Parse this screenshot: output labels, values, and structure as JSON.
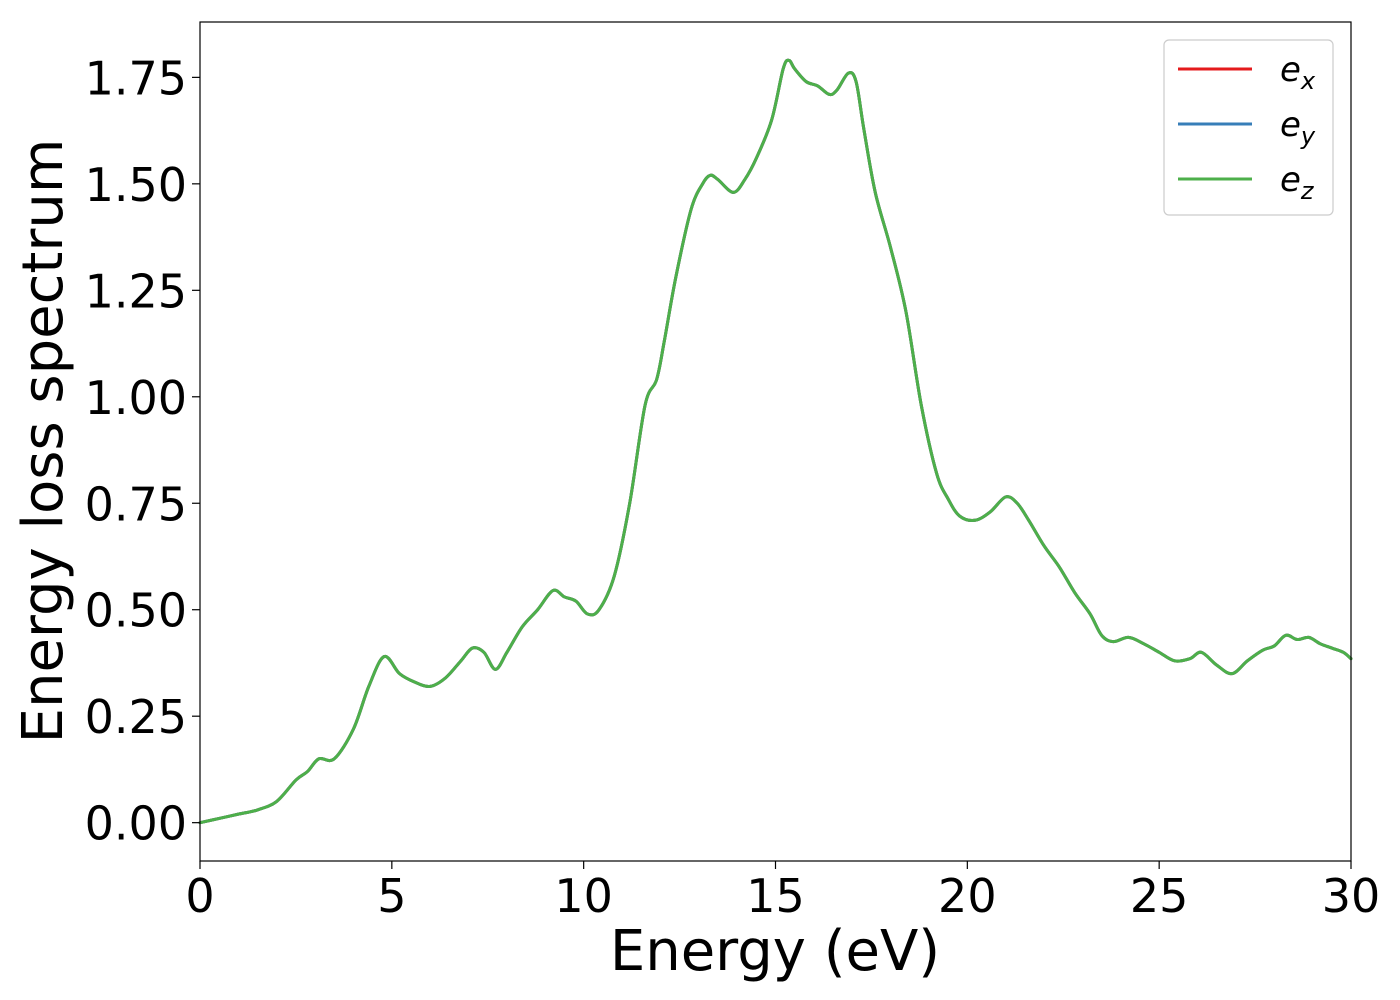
{
  "chart_data": {
    "type": "line",
    "xlabel": "Energy (eV)",
    "ylabel": "Energy loss spectrum",
    "xlim": [
      0,
      30
    ],
    "ylim": [
      -0.09,
      1.88
    ],
    "xticks": [
      0,
      5,
      10,
      15,
      20,
      25,
      30
    ],
    "xtick_labels": [
      "0",
      "5",
      "10",
      "15",
      "20",
      "25",
      "30"
    ],
    "yticks": [
      0.0,
      0.25,
      0.5,
      0.75,
      1.0,
      1.25,
      1.5,
      1.75
    ],
    "ytick_labels": [
      "0.00",
      "0.25",
      "0.50",
      "0.75",
      "1.00",
      "1.25",
      "1.50",
      "1.75"
    ],
    "grid": false,
    "legend_position": "top-right",
    "x": [
      0,
      0.5,
      1.0,
      1.5,
      2.0,
      2.5,
      2.8,
      3.1,
      3.5,
      4.0,
      4.4,
      4.8,
      5.2,
      5.6,
      6.0,
      6.4,
      6.8,
      7.1,
      7.4,
      7.7,
      8.0,
      8.4,
      8.8,
      9.2,
      9.5,
      9.8,
      10.1,
      10.4,
      10.8,
      11.2,
      11.6,
      11.9,
      12.1,
      12.4,
      12.8,
      13.1,
      13.3,
      13.5,
      13.9,
      14.2,
      14.5,
      14.9,
      15.2,
      15.35,
      15.5,
      15.8,
      16.1,
      16.4,
      16.6,
      16.9,
      17.1,
      17.3,
      17.6,
      18.0,
      18.4,
      18.8,
      19.2,
      19.5,
      19.8,
      20.2,
      20.6,
      21.0,
      21.3,
      21.6,
      22.0,
      22.4,
      22.8,
      23.2,
      23.5,
      23.8,
      24.2,
      24.6,
      25.0,
      25.4,
      25.8,
      26.1,
      26.5,
      26.9,
      27.3,
      27.7,
      28.0,
      28.3,
      28.6,
      28.9,
      29.2,
      29.5,
      29.8,
      30.0
    ],
    "series": [
      {
        "name": "e_x",
        "color": "#e41a1c",
        "values": [
          0.0,
          0.01,
          0.02,
          0.03,
          0.05,
          0.1,
          0.12,
          0.15,
          0.15,
          0.22,
          0.32,
          0.39,
          0.35,
          0.33,
          0.32,
          0.34,
          0.38,
          0.41,
          0.4,
          0.36,
          0.4,
          0.46,
          0.5,
          0.545,
          0.53,
          0.52,
          0.49,
          0.5,
          0.58,
          0.75,
          0.98,
          1.04,
          1.13,
          1.28,
          1.44,
          1.5,
          1.52,
          1.51,
          1.48,
          1.51,
          1.56,
          1.65,
          1.77,
          1.79,
          1.77,
          1.74,
          1.73,
          1.71,
          1.72,
          1.76,
          1.74,
          1.63,
          1.48,
          1.35,
          1.2,
          0.98,
          0.82,
          0.76,
          0.72,
          0.71,
          0.73,
          0.765,
          0.75,
          0.71,
          0.65,
          0.6,
          0.54,
          0.49,
          0.44,
          0.425,
          0.435,
          0.42,
          0.4,
          0.38,
          0.385,
          0.4,
          0.37,
          0.35,
          0.38,
          0.405,
          0.415,
          0.44,
          0.43,
          0.435,
          0.42,
          0.41,
          0.4,
          0.385
        ]
      },
      {
        "name": "e_y",
        "color": "#377eb8",
        "values": [
          0.0,
          0.01,
          0.02,
          0.03,
          0.05,
          0.1,
          0.12,
          0.15,
          0.15,
          0.22,
          0.32,
          0.39,
          0.35,
          0.33,
          0.32,
          0.34,
          0.38,
          0.41,
          0.4,
          0.36,
          0.4,
          0.46,
          0.5,
          0.545,
          0.53,
          0.52,
          0.49,
          0.5,
          0.58,
          0.75,
          0.98,
          1.04,
          1.13,
          1.28,
          1.44,
          1.5,
          1.52,
          1.51,
          1.48,
          1.51,
          1.56,
          1.65,
          1.77,
          1.79,
          1.77,
          1.74,
          1.73,
          1.71,
          1.72,
          1.76,
          1.74,
          1.63,
          1.48,
          1.35,
          1.2,
          0.98,
          0.82,
          0.76,
          0.72,
          0.71,
          0.73,
          0.765,
          0.75,
          0.71,
          0.65,
          0.6,
          0.54,
          0.49,
          0.44,
          0.425,
          0.435,
          0.42,
          0.4,
          0.38,
          0.385,
          0.4,
          0.37,
          0.35,
          0.38,
          0.405,
          0.415,
          0.44,
          0.43,
          0.435,
          0.42,
          0.41,
          0.4,
          0.385
        ]
      },
      {
        "name": "e_z",
        "color": "#4daf4a",
        "values": [
          0.0,
          0.01,
          0.02,
          0.03,
          0.05,
          0.1,
          0.12,
          0.15,
          0.15,
          0.22,
          0.32,
          0.39,
          0.35,
          0.33,
          0.32,
          0.34,
          0.38,
          0.41,
          0.4,
          0.36,
          0.4,
          0.46,
          0.5,
          0.545,
          0.53,
          0.52,
          0.49,
          0.5,
          0.58,
          0.75,
          0.98,
          1.04,
          1.13,
          1.28,
          1.44,
          1.5,
          1.52,
          1.51,
          1.48,
          1.51,
          1.56,
          1.65,
          1.77,
          1.79,
          1.77,
          1.74,
          1.73,
          1.71,
          1.72,
          1.76,
          1.74,
          1.63,
          1.48,
          1.35,
          1.2,
          0.98,
          0.82,
          0.76,
          0.72,
          0.71,
          0.73,
          0.765,
          0.75,
          0.71,
          0.65,
          0.6,
          0.54,
          0.49,
          0.44,
          0.425,
          0.435,
          0.42,
          0.4,
          0.38,
          0.385,
          0.4,
          0.37,
          0.35,
          0.38,
          0.405,
          0.415,
          0.44,
          0.43,
          0.435,
          0.42,
          0.41,
          0.4,
          0.385
        ]
      }
    ],
    "legend": [
      {
        "base": "e",
        "sub": "x"
      },
      {
        "base": "e",
        "sub": "y"
      },
      {
        "base": "e",
        "sub": "z"
      }
    ]
  }
}
